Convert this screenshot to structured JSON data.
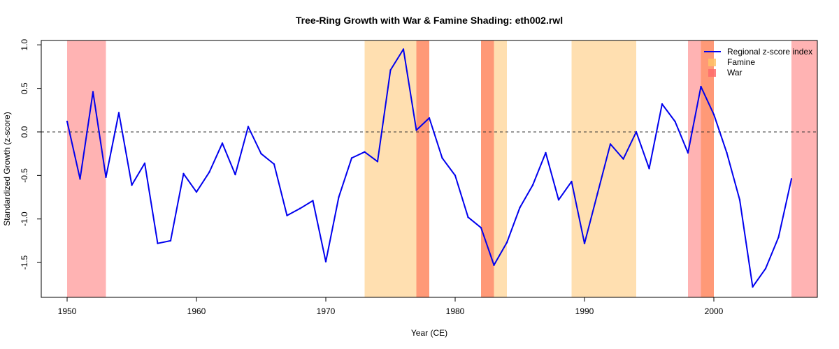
{
  "chart_data": {
    "type": "line",
    "title": "Tree-Ring Growth with War & Famine Shading: eth002.rwl",
    "xlabel": "Year (CE)",
    "ylabel": "Standardized Growth (z-score)",
    "xlim": [
      1948,
      2008
    ],
    "ylim": [
      -1.9,
      1.05
    ],
    "x_ticks": [
      1950,
      1960,
      1970,
      1980,
      1990,
      2000
    ],
    "y_ticks": [
      -1.5,
      -1.0,
      -0.5,
      0.0,
      0.5,
      1.0
    ],
    "y_tick_labels": [
      "-1.5",
      "-1.0",
      "-0.5",
      "0.0",
      "0.5",
      "1.0"
    ],
    "reference_line": {
      "y": 0,
      "style": "dashed"
    },
    "legend": {
      "position": "top-right",
      "entries": [
        {
          "label": "Regional z-score index",
          "kind": "line",
          "color": "#0000ee"
        },
        {
          "label": "Famine",
          "kind": "box",
          "color": "#ffc266"
        },
        {
          "label": "War",
          "kind": "box",
          "color": "#ff6b6b"
        }
      ]
    },
    "shading": [
      {
        "type": "war",
        "start": 1950,
        "end": 1953
      },
      {
        "type": "famine",
        "start": 1973,
        "end": 1978
      },
      {
        "type": "war",
        "start": 1977,
        "end": 1978
      },
      {
        "type": "famine",
        "start": 1982,
        "end": 1984
      },
      {
        "type": "war",
        "start": 1982,
        "end": 1983
      },
      {
        "type": "famine",
        "start": 1989,
        "end": 1994
      },
      {
        "type": "war",
        "start": 1998,
        "end": 2000
      },
      {
        "type": "famine",
        "start": 1999,
        "end": 2000
      },
      {
        "type": "war",
        "start": 2006,
        "end": 2008.5
      }
    ],
    "shading_colors": {
      "war": "#ffb3b3",
      "famine": "#ffdfb0",
      "overlap": "#ff9977"
    },
    "series": [
      {
        "name": "Regional z-score index",
        "color": "#0000ee",
        "x": [
          1950,
          1951,
          1952,
          1953,
          1954,
          1955,
          1956,
          1957,
          1958,
          1959,
          1960,
          1961,
          1962,
          1963,
          1964,
          1965,
          1966,
          1967,
          1968,
          1969,
          1970,
          1971,
          1972,
          1973,
          1974,
          1975,
          1976,
          1977,
          1978,
          1979,
          1980,
          1981,
          1982,
          1983,
          1984,
          1985,
          1986,
          1987,
          1988,
          1989,
          1990,
          1991,
          1992,
          1993,
          1994,
          1995,
          1996,
          1997,
          1998,
          1999,
          2000,
          2001,
          2002,
          2003,
          2004,
          2005,
          2006
        ],
        "values": [
          0.12,
          -0.54,
          0.46,
          -0.52,
          0.22,
          -0.61,
          -0.36,
          -1.28,
          -1.25,
          -0.48,
          -0.69,
          -0.46,
          -0.13,
          -0.49,
          0.06,
          -0.25,
          -0.37,
          -0.96,
          -0.88,
          -0.79,
          -1.49,
          -0.75,
          -0.3,
          -0.23,
          -0.34,
          0.71,
          0.95,
          0.02,
          0.16,
          -0.3,
          -0.5,
          -0.98,
          -1.1,
          -1.53,
          -1.27,
          -0.87,
          -0.61,
          -0.24,
          -0.78,
          -0.57,
          -1.28,
          -0.71,
          -0.14,
          -0.31,
          0.0,
          -0.42,
          0.32,
          0.12,
          -0.24,
          0.52,
          0.2,
          -0.24,
          -0.78,
          -1.78,
          -1.57,
          -1.21,
          -0.54
        ]
      }
    ]
  }
}
